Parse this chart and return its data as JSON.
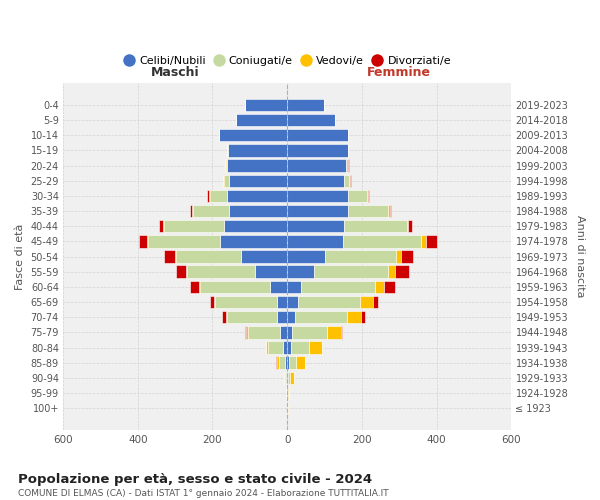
{
  "age_groups": [
    "100+",
    "95-99",
    "90-94",
    "85-89",
    "80-84",
    "75-79",
    "70-74",
    "65-69",
    "60-64",
    "55-59",
    "50-54",
    "45-49",
    "40-44",
    "35-39",
    "30-34",
    "25-29",
    "20-24",
    "15-19",
    "10-14",
    "5-9",
    "0-4"
  ],
  "birth_years": [
    "≤ 1923",
    "1924-1928",
    "1929-1933",
    "1934-1938",
    "1939-1943",
    "1944-1948",
    "1949-1953",
    "1954-1958",
    "1959-1963",
    "1964-1968",
    "1969-1973",
    "1974-1978",
    "1979-1983",
    "1984-1988",
    "1989-1993",
    "1994-1998",
    "1999-2003",
    "2004-2008",
    "2009-2013",
    "2014-2018",
    "2019-2023"
  ],
  "males_celibi": [
    0,
    1,
    2,
    5,
    10,
    18,
    28,
    28,
    45,
    85,
    125,
    180,
    168,
    155,
    160,
    155,
    160,
    158,
    182,
    138,
    112
  ],
  "males_coniugati": [
    0,
    1,
    5,
    18,
    42,
    88,
    132,
    165,
    188,
    182,
    172,
    192,
    162,
    98,
    48,
    14,
    5,
    2,
    0,
    0,
    0
  ],
  "males_vedovi": [
    0,
    0,
    2,
    4,
    4,
    4,
    4,
    4,
    4,
    4,
    4,
    4,
    2,
    2,
    2,
    2,
    1,
    0,
    0,
    0,
    0
  ],
  "males_divorziati": [
    0,
    0,
    0,
    2,
    2,
    4,
    10,
    10,
    24,
    28,
    28,
    22,
    10,
    5,
    4,
    2,
    1,
    0,
    0,
    0,
    0
  ],
  "females_nubili": [
    0,
    1,
    3,
    5,
    10,
    14,
    22,
    28,
    38,
    72,
    102,
    150,
    152,
    162,
    162,
    152,
    158,
    162,
    162,
    128,
    98
  ],
  "females_coniugate": [
    0,
    2,
    5,
    18,
    48,
    92,
    138,
    168,
    198,
    198,
    188,
    208,
    168,
    108,
    52,
    14,
    5,
    2,
    0,
    0,
    0
  ],
  "females_vedove": [
    1,
    3,
    10,
    24,
    34,
    38,
    38,
    34,
    24,
    18,
    14,
    14,
    4,
    4,
    2,
    2,
    1,
    0,
    0,
    0,
    0
  ],
  "females_divorziate": [
    0,
    0,
    0,
    2,
    2,
    4,
    10,
    14,
    28,
    38,
    34,
    28,
    10,
    4,
    2,
    2,
    1,
    0,
    0,
    0,
    0
  ],
  "color_celibi": "#4472c4",
  "color_coniugati": "#c5d9a0",
  "color_vedovi": "#ffc000",
  "color_divorziati": "#cc0000",
  "legend_labels": [
    "Celibi/Nubili",
    "Coniugati/e",
    "Vedovi/e",
    "Divorziati/e"
  ],
  "title": "Popolazione per età, sesso e stato civile - 2024",
  "subtitle": "COMUNE DI ELMAS (CA) - Dati ISTAT 1° gennaio 2024 - Elaborazione TUTTITALIA.IT",
  "label_maschi": "Maschi",
  "label_femmine": "Femmine",
  "ylabel_left": "Fasce di età",
  "ylabel_right": "Anni di nascita",
  "xlim": 600,
  "bg_plot": "#f0f0f0",
  "bg_fig": "#ffffff",
  "grid_color": "#cccccc"
}
